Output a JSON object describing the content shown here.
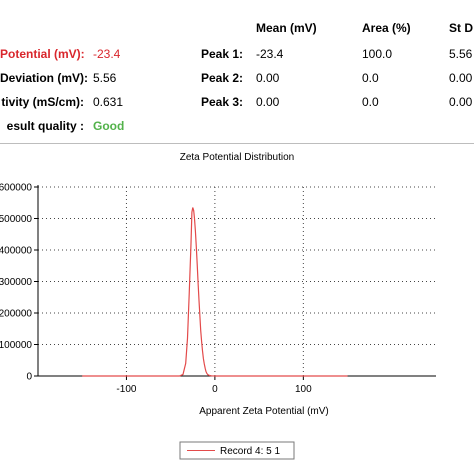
{
  "results": {
    "headers": {
      "mean": "Mean (mV)",
      "area": "Area (%)",
      "stdev": "St D"
    },
    "zeta_label": "Potential (mV):",
    "zeta_value": "-23.4",
    "deviation_label": "Deviation (mV):",
    "deviation_value": "5.56",
    "conductivity_label": "tivity (mS/cm):",
    "conductivity_value": "0.631",
    "quality_label": "esult quality :",
    "quality_value": "Good",
    "peaks": [
      {
        "label": "Peak 1:",
        "mean": "-23.4",
        "area": "100.0",
        "stdev": "5.56"
      },
      {
        "label": "Peak 2:",
        "mean": "0.00",
        "area": "0.0",
        "stdev": "0.00"
      },
      {
        "label": "Peak 3:",
        "mean": "0.00",
        "area": "0.0",
        "stdev": "0.00"
      }
    ]
  },
  "chart_data": {
    "type": "line",
    "title": "Zeta Potential Distribution",
    "xlabel": "Apparent Zeta Potential (mV)",
    "ylabel": "",
    "xlim": [
      -200,
      250
    ],
    "ylim": [
      0,
      600000
    ],
    "xticks": [
      "-100",
      "0",
      "100"
    ],
    "xtick_values": [
      -100,
      0,
      100
    ],
    "yticks": [
      "0",
      "100000",
      "200000",
      "300000",
      "400000",
      "500000",
      "600000"
    ],
    "ytick_values": [
      0,
      100000,
      200000,
      300000,
      400000,
      500000,
      600000
    ],
    "grid": true,
    "legend_position": "bottom",
    "series": [
      {
        "name": "Record 4: 5 1",
        "color": "#e34a4a",
        "x": [
          -150,
          -40,
          -36,
          -33,
          -31,
          -29,
          -27,
          -26,
          -25,
          -24,
          -23,
          -22,
          -21,
          -20,
          -19,
          -18,
          -17,
          -16,
          -15,
          -14,
          -13,
          -12,
          -11,
          -10,
          -9,
          -8,
          -6,
          -4,
          0,
          150
        ],
        "y": [
          0,
          0,
          5000,
          40000,
          120000,
          260000,
          420000,
          520000,
          535000,
          525000,
          500000,
          460000,
          410000,
          355000,
          295000,
          240000,
          190000,
          145000,
          110000,
          80000,
          55000,
          38000,
          24000,
          14000,
          8000,
          4000,
          1500,
          500,
          0,
          0
        ]
      }
    ]
  }
}
